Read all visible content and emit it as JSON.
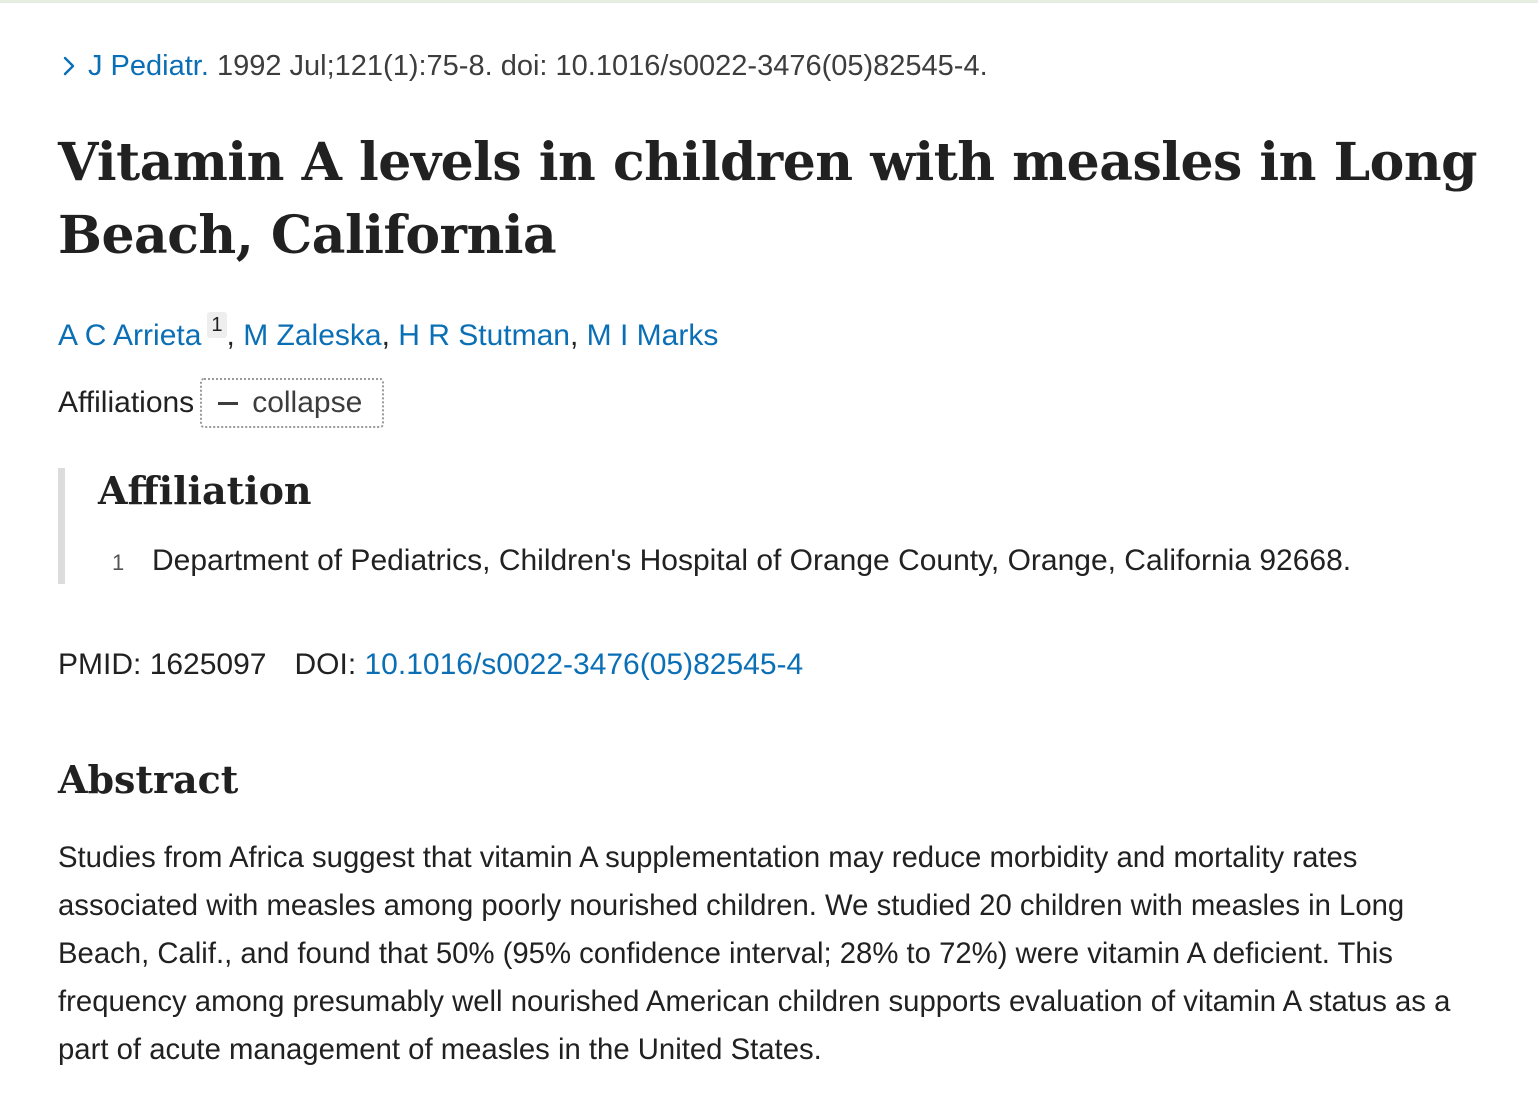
{
  "citation": {
    "journal": "J Pediatr.",
    "details": " 1992 Jul;121(1):75-8. doi: 10.1016/s0022-3476(05)82545-4."
  },
  "article": {
    "title": "Vitamin A levels in children with measles in Long Beach, California"
  },
  "authors": [
    {
      "name": "A C Arrieta",
      "affiliation": "1"
    },
    {
      "name": "M Zaleska"
    },
    {
      "name": "H R Stutman"
    },
    {
      "name": "M I Marks"
    }
  ],
  "affiliations": {
    "label": "Affiliations",
    "toggle_label": "collapse",
    "heading": "Affiliation",
    "items": [
      {
        "number": "1",
        "text": "Department of Pediatrics, Children's Hospital of Orange County, Orange, California 92668."
      }
    ]
  },
  "identifiers": {
    "pmid_label": "PMID:",
    "pmid": "1625097",
    "doi_label": "DOI:",
    "doi": "10.1016/s0022-3476(05)82545-4"
  },
  "abstract": {
    "heading": "Abstract",
    "text": "Studies from Africa suggest that vitamin A supplementation may reduce morbidity and mortality rates associated with measles among poorly nourished children. We studied 20 children with measles in Long Beach, Calif., and found that 50% (95% confidence interval; 28% to 72%) were vitamin A deficient. This frequency among presumably well nourished American children supports evaluation of vitamin A status as a part of acute management of measles in the United States."
  },
  "colors": {
    "link": "#0b6fb5",
    "text": "#212121",
    "rule": "#dcdcdc"
  },
  "icons": {
    "journal_chevron": "chevron-right-icon",
    "collapse": "minus-icon"
  }
}
